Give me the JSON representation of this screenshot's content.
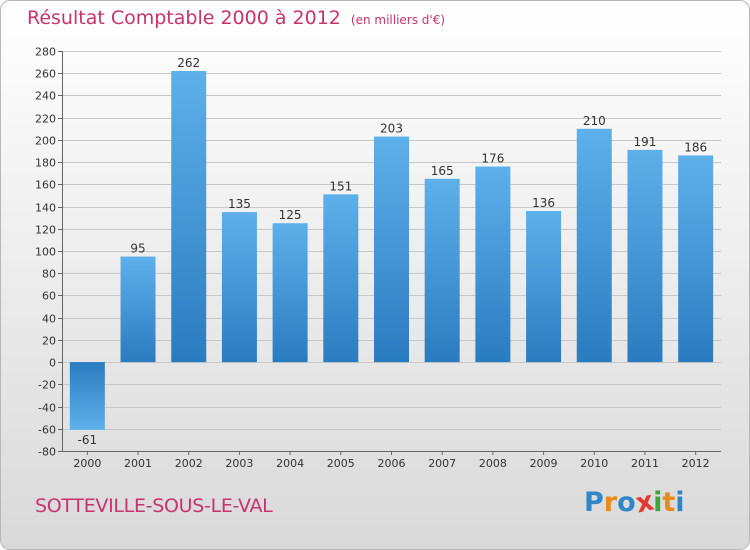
{
  "header": {
    "title": "Résultat Comptable 2000 à 2012",
    "subtitle": "(en milliers d'€)"
  },
  "footer": {
    "commune": "SOTTEVILLE-SOUS-LE-VAL",
    "logo_text": "Proxiti"
  },
  "colors": {
    "title": "#c8336e",
    "bar_light": "#5eb0ea",
    "bar_dark": "#2a7cc0",
    "logo": [
      "#2f86c8",
      "#e88a1a",
      "#2f86c8",
      "#e23a2e",
      "#3fa43a",
      "#e88a1a",
      "#2f86c8"
    ]
  },
  "chart_data": {
    "type": "bar",
    "title": "Résultat Comptable 2000 à 2012",
    "subtitle": "(en milliers d'€)",
    "xlabel": "",
    "ylabel": "",
    "categories": [
      "2000",
      "2001",
      "2002",
      "2003",
      "2004",
      "2005",
      "2006",
      "2007",
      "2008",
      "2009",
      "2010",
      "2011",
      "2012"
    ],
    "values": [
      -61,
      95,
      262,
      135,
      125,
      151,
      203,
      165,
      176,
      136,
      210,
      191,
      186
    ],
    "value_labels": [
      "-61",
      "95",
      "262",
      "135",
      "125",
      "151",
      "203",
      "165",
      "176",
      "136",
      "210",
      "191",
      "186"
    ],
    "ylim": [
      -80,
      280
    ],
    "yticks": [
      -80,
      -60,
      -40,
      -20,
      0,
      20,
      40,
      60,
      80,
      100,
      120,
      140,
      160,
      180,
      200,
      220,
      240,
      260,
      280
    ],
    "ytick_labels": [
      "-80",
      "-60",
      "-40",
      "-20",
      "0",
      "20",
      "40",
      "60",
      "80",
      "100",
      "120",
      "140",
      "160",
      "180",
      "200",
      "220",
      "240",
      "260",
      "280"
    ],
    "grid": true,
    "legend": "none"
  }
}
